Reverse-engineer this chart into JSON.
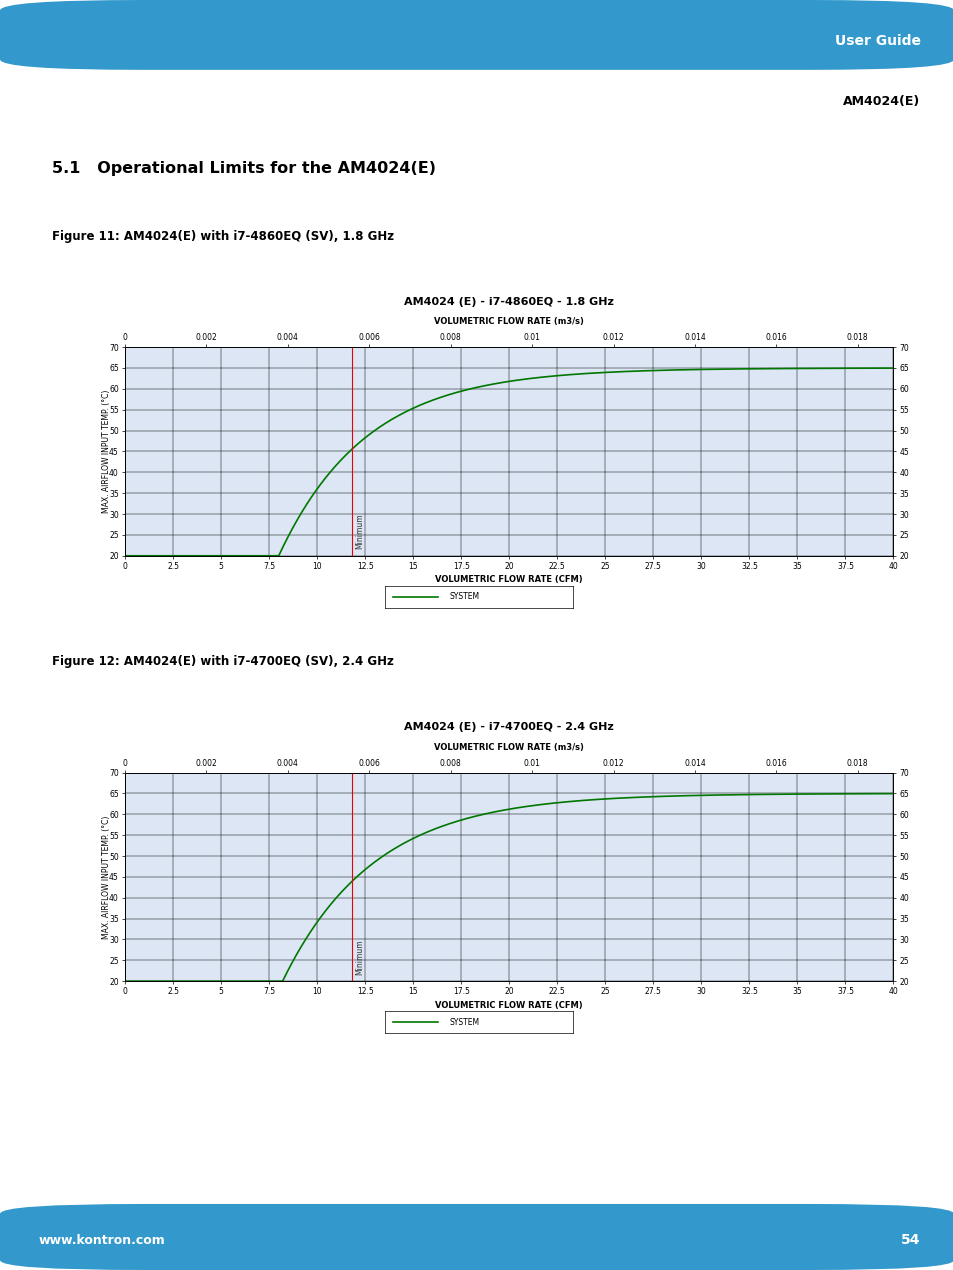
{
  "page_bg": "#ffffff",
  "header_bg": "#3399cc",
  "header_text": "User Guide",
  "subheader_text": "AM4024(E)",
  "footer_bg": "#3399cc",
  "footer_text": "www.kontron.com",
  "footer_page": "54",
  "section_title": "5.1   Operational Limits for the AM4024(E)",
  "fig1_caption": "Figure 11: AM4024(E) with i7-4860EQ (SV), 1.8 GHz",
  "fig2_caption": "Figure 12: AM4024(E) with i7-4700EQ (SV), 2.4 GHz",
  "chart1_title": "AM4024 (E) - i7-4860EQ - 1.8 GHz",
  "chart2_title": "AM4024 (E) - i7-4700EQ - 2.4 GHz",
  "chart_bg": "#bfcfe8",
  "plot_bg": "#dce6f4",
  "line_color": "#007700",
  "vline_color": "#ee0000",
  "xlabel_cfm": "VOLUMETRIC FLOW RATE (CFM)",
  "xlabel_m3s": "VOLUMETRIC FLOW RATE (m3/s)",
  "ylabel": "MAX. AIRFLOW INPUT TEMP. (°C)",
  "x_cfm_min": 0,
  "x_cfm_max": 40,
  "x_m3s_min": 0,
  "x_m3s_max": 0.019,
  "y_min": 20,
  "y_max": 70,
  "x_cfm_ticks": [
    0,
    2.5,
    5,
    7.5,
    10,
    12.5,
    15,
    17.5,
    20,
    22.5,
    25,
    27.5,
    30,
    32.5,
    35,
    37.5,
    40
  ],
  "x_m3s_ticks": [
    0,
    0.002,
    0.004,
    0.006,
    0.008,
    0.01,
    0.012,
    0.014,
    0.016,
    0.018
  ],
  "y_ticks": [
    20,
    25,
    30,
    35,
    40,
    45,
    50,
    55,
    60,
    65,
    70
  ],
  "vline_x_cfm": 11.8,
  "vline_label": "Minimum",
  "legend_label": "SYSTEM",
  "legend_line_color": "#007700",
  "curve1_start_x": 8.0,
  "curve2_start_x": 8.2
}
